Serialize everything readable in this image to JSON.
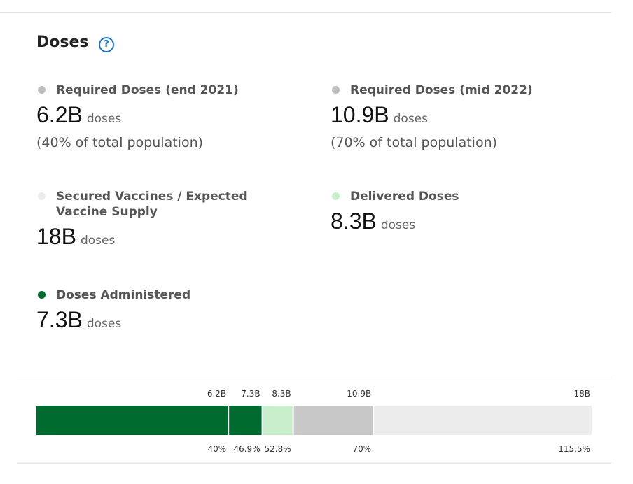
{
  "title": "Doses",
  "help_icon": "?",
  "metrics": [
    {
      "label": "Required Doses (end 2021)",
      "value": "6.2B",
      "unit": "doses",
      "note": "(40% of total population)",
      "dot_color": "#bdbdbd"
    },
    {
      "label": "Required Doses (mid 2022)",
      "value": "10.9B",
      "unit": "doses",
      "note": "(70% of total population)",
      "dot_color": "#bdbdbd"
    },
    {
      "label": "Secured Vaccines / Expected Vaccine Supply",
      "value": "18B",
      "unit": "doses",
      "dot_color": "#ececec"
    },
    {
      "label": "Delivered Doses",
      "value": "8.3B",
      "unit": "doses",
      "dot_color": "#c8eecb"
    },
    {
      "label": "Doses Administered",
      "value": "7.3B",
      "unit": "doses",
      "dot_color": "#006b2e"
    }
  ],
  "bar": {
    "xlim": [
      0,
      18
    ],
    "values": [
      6.2,
      7.3,
      8.3,
      10.9,
      18
    ],
    "value_labels": [
      "6.2B",
      "7.3B",
      "8.3B",
      "10.9B",
      "18B"
    ],
    "percents": [
      40,
      46.9,
      52.8,
      70,
      115.5
    ],
    "percent_labels": [
      "40%",
      "46.9%",
      "52.8%",
      "70%",
      "115.5%"
    ],
    "colors": [
      "#006b2e",
      "#006b2e",
      "#c8eecb",
      "#c8c8c8",
      "#ececec"
    ]
  }
}
